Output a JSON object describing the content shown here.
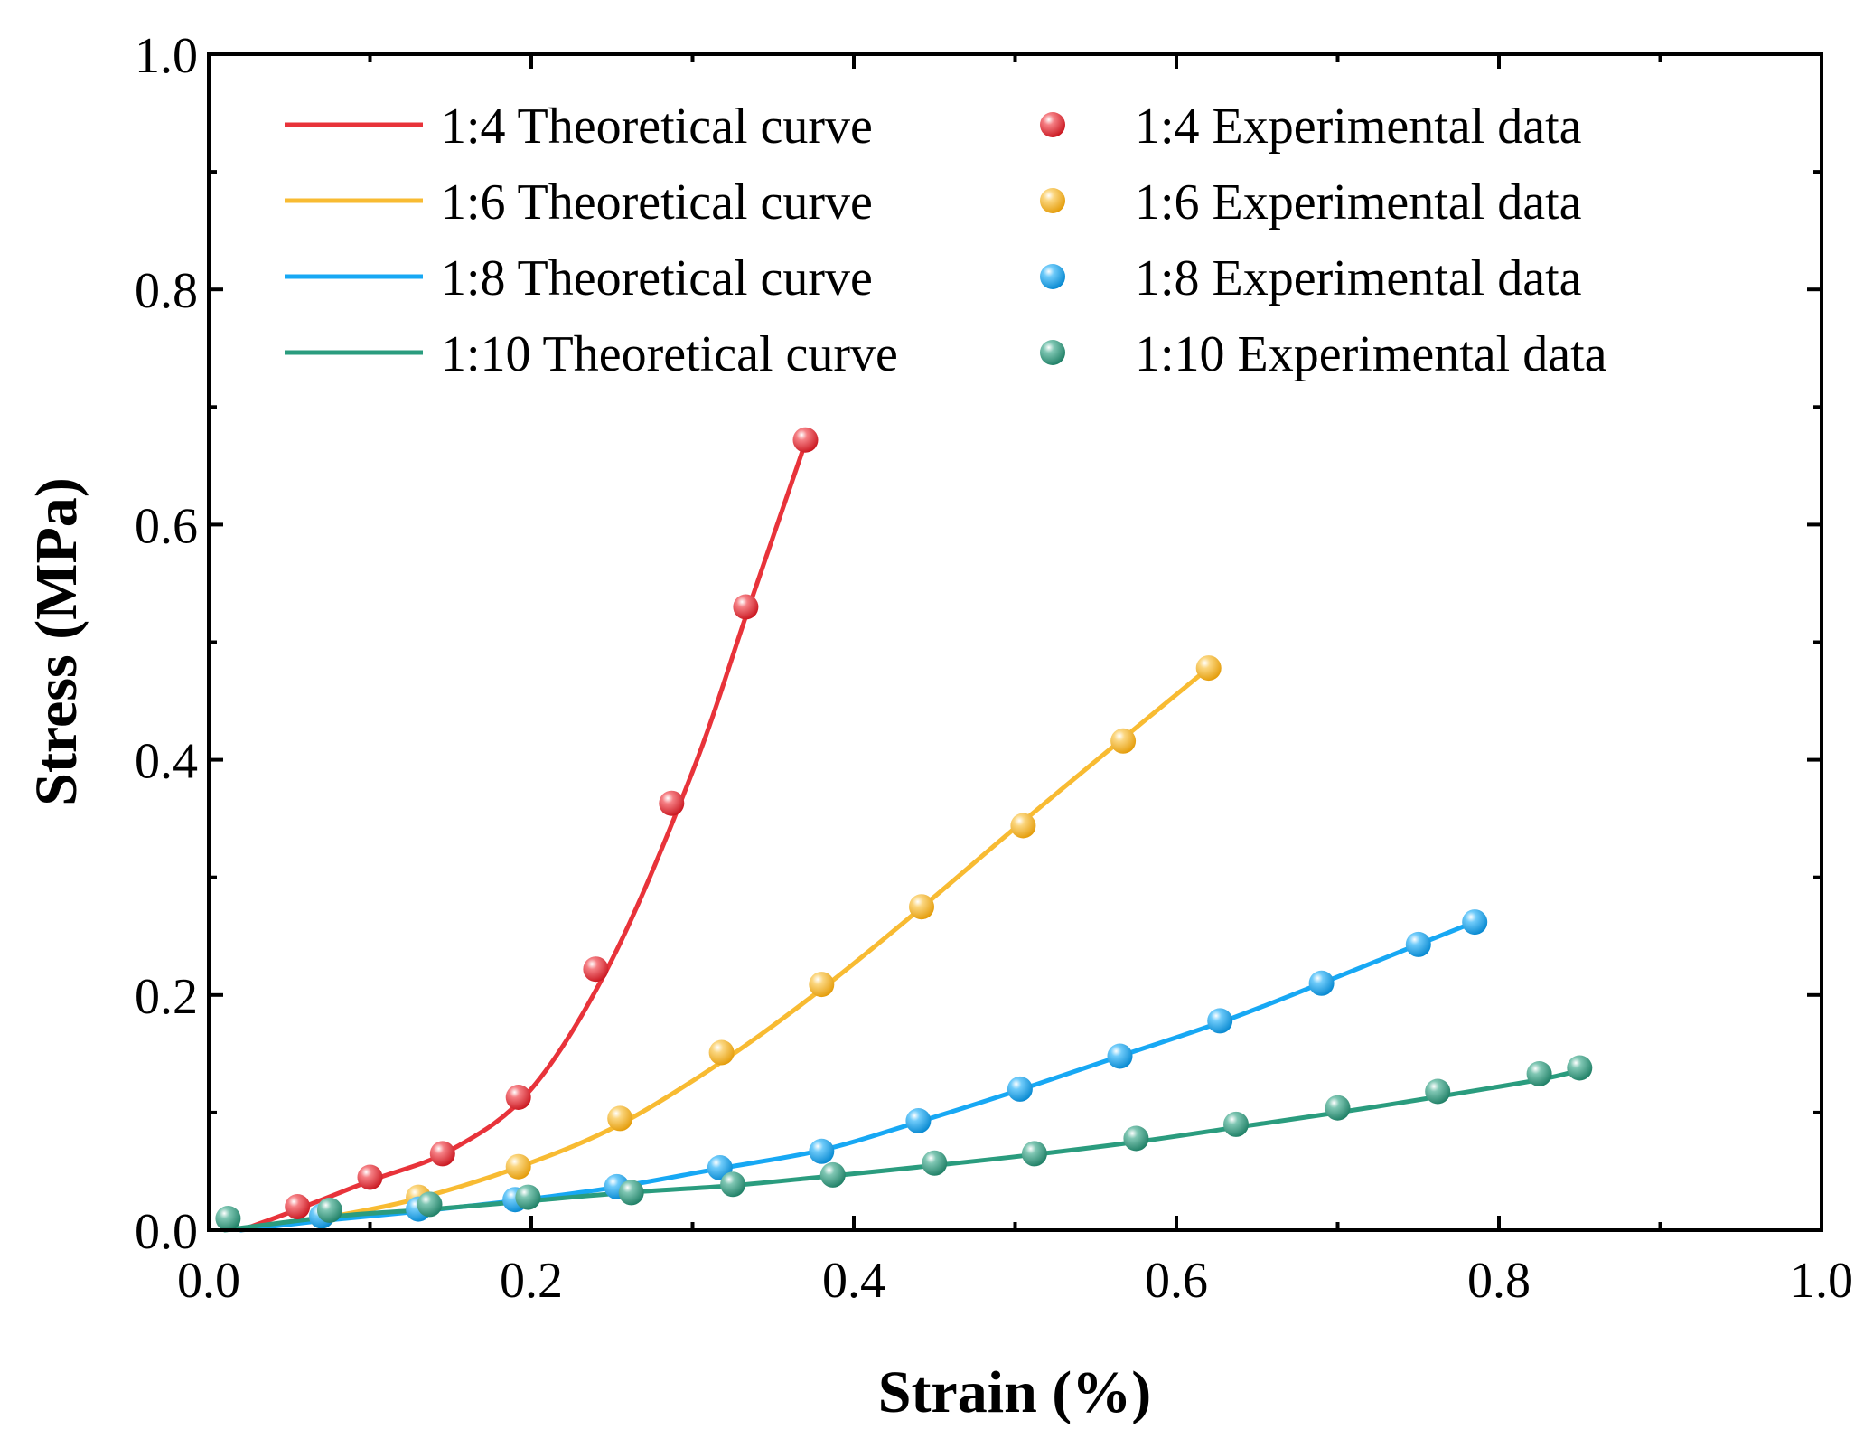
{
  "chart_data": {
    "type": "scatter",
    "xlabel": "Strain (%)",
    "ylabel": "Stress (MPa)",
    "xlim": [
      0.0,
      1.0
    ],
    "ylim": [
      0.0,
      1.0
    ],
    "grid": false,
    "legend_position": "top",
    "x_ticks": [
      0.0,
      0.2,
      0.4,
      0.6,
      0.8,
      1.0
    ],
    "y_ticks": [
      0.0,
      0.2,
      0.4,
      0.6,
      0.8,
      1.0
    ],
    "x_tick_labels": [
      "0.0",
      "0.2",
      "0.4",
      "0.6",
      "0.8",
      "1.0"
    ],
    "y_tick_labels": [
      "0.0",
      "0.2",
      "0.4",
      "0.6",
      "0.8",
      "1.0"
    ],
    "series": [
      {
        "ratio": "1:4",
        "color": "#e8333a",
        "curve_label": "1:4 Theoretical curve",
        "data_label": "1:4 Experimental data",
        "curve_x": [
          0.02,
          0.05,
          0.1,
          0.15,
          0.2,
          0.25,
          0.3,
          0.335,
          0.37
        ],
        "curve_y": [
          0.0,
          0.015,
          0.042,
          0.068,
          0.12,
          0.23,
          0.39,
          0.53,
          0.67
        ],
        "points_x": [
          0.055,
          0.1,
          0.145,
          0.192,
          0.24,
          0.287,
          0.333,
          0.37
        ],
        "points_y": [
          0.02,
          0.045,
          0.065,
          0.113,
          0.222,
          0.363,
          0.53,
          0.672
        ]
      },
      {
        "ratio": "1:6",
        "color": "#f8bb32",
        "curve_label": "1:6 Theoretical curve",
        "data_label": "1:6 Experimental data",
        "curve_x": [
          0.02,
          0.07,
          0.13,
          0.195,
          0.255,
          0.32,
          0.38,
          0.44,
          0.5,
          0.565,
          0.62
        ],
        "curve_y": [
          0.0,
          0.01,
          0.027,
          0.055,
          0.09,
          0.145,
          0.205,
          0.272,
          0.342,
          0.416,
          0.478
        ],
        "points_x": [
          0.07,
          0.13,
          0.192,
          0.255,
          0.318,
          0.38,
          0.442,
          0.505,
          0.567,
          0.62
        ],
        "points_y": [
          0.012,
          0.028,
          0.054,
          0.095,
          0.151,
          0.209,
          0.275,
          0.344,
          0.416,
          0.478
        ]
      },
      {
        "ratio": "1:8",
        "color": "#17a8f4",
        "curve_label": "1:8 Theoretical curve",
        "data_label": "1:8 Experimental data",
        "curve_x": [
          0.02,
          0.07,
          0.13,
          0.19,
          0.25,
          0.315,
          0.38,
          0.44,
          0.5,
          0.565,
          0.63,
          0.69,
          0.75,
          0.785
        ],
        "curve_y": [
          0.0,
          0.008,
          0.016,
          0.025,
          0.036,
          0.052,
          0.068,
          0.092,
          0.118,
          0.148,
          0.178,
          0.21,
          0.243,
          0.262
        ],
        "points_x": [
          0.07,
          0.13,
          0.19,
          0.253,
          0.317,
          0.38,
          0.44,
          0.503,
          0.565,
          0.627,
          0.69,
          0.75,
          0.785
        ],
        "points_y": [
          0.012,
          0.018,
          0.026,
          0.037,
          0.053,
          0.067,
          0.093,
          0.12,
          0.148,
          0.178,
          0.21,
          0.243,
          0.262
        ]
      },
      {
        "ratio": "1:10",
        "color": "#2a9c7e",
        "curve_label": "1:10 Theoretical curve",
        "data_label": "1:10 Experimental data",
        "curve_x": [
          0.01,
          0.08,
          0.14,
          0.2,
          0.26,
          0.325,
          0.385,
          0.45,
          0.51,
          0.575,
          0.635,
          0.7,
          0.76,
          0.825,
          0.85
        ],
        "curve_y": [
          0.0,
          0.012,
          0.018,
          0.025,
          0.032,
          0.038,
          0.046,
          0.055,
          0.064,
          0.075,
          0.087,
          0.1,
          0.113,
          0.128,
          0.136
        ],
        "points_x": [
          0.012,
          0.075,
          0.137,
          0.198,
          0.262,
          0.325,
          0.387,
          0.45,
          0.512,
          0.575,
          0.637,
          0.7,
          0.762,
          0.825,
          0.85
        ],
        "points_y": [
          0.01,
          0.017,
          0.022,
          0.028,
          0.032,
          0.039,
          0.047,
          0.057,
          0.065,
          0.078,
          0.09,
          0.104,
          0.118,
          0.133,
          0.138
        ]
      }
    ]
  }
}
